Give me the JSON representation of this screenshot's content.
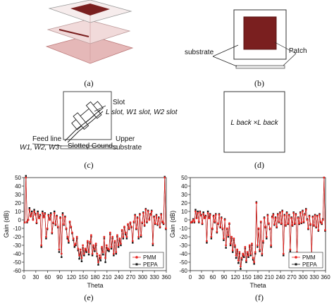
{
  "panels": {
    "a": {
      "caption": "(a)"
    },
    "b": {
      "caption": "(b)",
      "label_substrate": "substrate",
      "label_patch": "Patch"
    },
    "c": {
      "caption": "(c)",
      "label_slot": "Slot",
      "label_slot_dims": "L slot, W1 slot, W2 slot",
      "label_feed": "Feed line",
      "label_feed_dims": "W1, W2, W3",
      "label_slotted_ground": "Slotted Gound",
      "label_upper": "Upper",
      "label_substrate": "substrate"
    },
    "d": {
      "caption": "(d)",
      "label_back": "L back ×L back"
    },
    "e": {
      "caption": "(e)"
    },
    "f": {
      "caption": "(f)"
    }
  },
  "colors": {
    "patch": "#7a1f1f",
    "pmm": "#e8231f",
    "pepa": "#111111",
    "substrate_pink": "#e8c6c6"
  },
  "chart_data": [
    {
      "type": "line",
      "panel": "e",
      "xlabel": "Theta",
      "ylabel": "Gain (dB)",
      "xlim": [
        0,
        360
      ],
      "ylim": [
        -60,
        50
      ],
      "xticks": [
        0,
        30,
        60,
        90,
        120,
        150,
        180,
        210,
        240,
        270,
        300,
        330,
        360
      ],
      "yticks": [
        50,
        40,
        30,
        20,
        10,
        0,
        -10,
        -20,
        -30,
        -40,
        -50,
        -60
      ],
      "legend": [
        "PMM",
        "PEPA"
      ],
      "legend_position": "bottom-right",
      "x": [
        2,
        5,
        8,
        11,
        14,
        17,
        20,
        23,
        26,
        29,
        32,
        35,
        38,
        41,
        44,
        47,
        50,
        53,
        56,
        59,
        62,
        65,
        68,
        71,
        74,
        77,
        80,
        83,
        86,
        89,
        92,
        95,
        98,
        101,
        104,
        107,
        110,
        113,
        116,
        119,
        122,
        125,
        128,
        131,
        134,
        137,
        140,
        143,
        146,
        149,
        152,
        155,
        158,
        161,
        164,
        167,
        170,
        173,
        176,
        179,
        182,
        185,
        188,
        191,
        194,
        197,
        200,
        203,
        206,
        209,
        212,
        215,
        218,
        221,
        224,
        227,
        230,
        233,
        236,
        239,
        242,
        245,
        248,
        251,
        254,
        257,
        260,
        263,
        266,
        269,
        272,
        275,
        278,
        281,
        284,
        287,
        290,
        293,
        296,
        299,
        302,
        305,
        308,
        311,
        314,
        317,
        320,
        323,
        326,
        329,
        332,
        335,
        338,
        341,
        344,
        347,
        350,
        353,
        356,
        359
      ],
      "series": [
        {
          "name": "PMM",
          "values": [
            -3,
            50,
            -2,
            0,
            12,
            4,
            8,
            0,
            10,
            6,
            -3,
            8,
            2,
            5,
            -30,
            8,
            3,
            7,
            -20,
            -10,
            5,
            0,
            6,
            -15,
            -3,
            8,
            -5,
            4,
            -8,
            -35,
            2,
            -40,
            6,
            -5,
            3,
            -10,
            -20,
            -25,
            -2,
            -8,
            -15,
            -22,
            -30,
            -28,
            -20,
            -34,
            -42,
            -35,
            -45,
            -30,
            -40,
            -34,
            -36,
            -25,
            -38,
            -26,
            -18,
            -40,
            -30,
            -35,
            -28,
            -40,
            -50,
            -42,
            -45,
            -32,
            -38,
            -20,
            -45,
            -30,
            -34,
            -35,
            -15,
            -32,
            -20,
            -40,
            -25,
            -38,
            -18,
            -30,
            -22,
            -28,
            -12,
            -20,
            -8,
            -15,
            -20,
            -5,
            -10,
            -3,
            -8,
            -25,
            -2,
            5,
            -10,
            2,
            -20,
            6,
            -18,
            -3,
            8,
            -6,
            12,
            -2,
            10,
            0,
            6,
            10,
            -28,
            3,
            -4,
            5,
            -5,
            2,
            -8,
            6,
            -2,
            -4,
            50,
            -10
          ]
        },
        {
          "name": "PEPA",
          "values": [
            -3,
            52,
            -3,
            0,
            14,
            5,
            10,
            1,
            12,
            7,
            -4,
            10,
            3,
            6,
            -32,
            10,
            4,
            8,
            -22,
            -11,
            6,
            1,
            8,
            -16,
            -4,
            10,
            -6,
            5,
            -9,
            -38,
            3,
            -44,
            8,
            -6,
            4,
            -11,
            -22,
            -27,
            -3,
            -9,
            -16,
            -24,
            -32,
            -30,
            -22,
            -36,
            -46,
            -38,
            -49,
            -33,
            -42,
            -36,
            -38,
            -27,
            -41,
            -28,
            -20,
            -42,
            -32,
            -37,
            -30,
            -43,
            -53,
            -45,
            -48,
            -34,
            -41,
            -22,
            -50,
            -33,
            -36,
            -37,
            -17,
            -34,
            -22,
            -42,
            -27,
            -40,
            -20,
            -32,
            -24,
            -30,
            -13,
            -22,
            -9,
            -17,
            -22,
            -6,
            -11,
            -4,
            -9,
            -27,
            -3,
            6,
            -11,
            3,
            -22,
            7,
            -20,
            -4,
            9,
            -7,
            13,
            -3,
            11,
            1,
            7,
            11,
            -30,
            4,
            -5,
            6,
            -6,
            3,
            -9,
            7,
            -3,
            -5,
            51,
            -11
          ]
        }
      ]
    },
    {
      "type": "line",
      "panel": "f",
      "xlabel": "Theta",
      "ylabel": "Gain (dB)",
      "xlim": [
        0,
        360
      ],
      "ylim": [
        -60,
        50
      ],
      "xticks": [
        0,
        30,
        60,
        90,
        120,
        150,
        180,
        210,
        240,
        270,
        300,
        330,
        360
      ],
      "yticks": [
        50,
        40,
        30,
        20,
        10,
        0,
        -10,
        -20,
        -30,
        -40,
        -50,
        -60
      ],
      "legend": [
        "PMM",
        "PEPA"
      ],
      "legend_position": "bottom-right",
      "x": [
        2,
        5,
        8,
        11,
        14,
        17,
        20,
        23,
        26,
        29,
        32,
        35,
        38,
        41,
        44,
        47,
        50,
        53,
        56,
        59,
        62,
        65,
        68,
        71,
        74,
        77,
        80,
        83,
        86,
        89,
        92,
        95,
        98,
        101,
        104,
        107,
        110,
        113,
        116,
        119,
        122,
        125,
        128,
        131,
        134,
        137,
        140,
        143,
        146,
        149,
        152,
        155,
        158,
        161,
        164,
        167,
        170,
        173,
        176,
        179,
        182,
        185,
        188,
        191,
        194,
        197,
        200,
        203,
        206,
        209,
        212,
        215,
        218,
        221,
        224,
        227,
        230,
        233,
        236,
        239,
        242,
        245,
        248,
        251,
        254,
        257,
        260,
        263,
        266,
        269,
        272,
        275,
        278,
        281,
        284,
        287,
        290,
        293,
        296,
        299,
        302,
        305,
        308,
        311,
        314,
        317,
        320,
        323,
        326,
        329,
        332,
        335,
        338,
        341,
        344,
        347,
        350,
        353,
        356,
        359
      ],
      "series": [
        {
          "name": "PMM",
          "values": [
            -3,
            -2,
            0,
            -2,
            10,
            2,
            8,
            -2,
            9,
            5,
            -4,
            7,
            2,
            4,
            -25,
            8,
            2,
            6,
            -20,
            -10,
            4,
            -2,
            6,
            -14,
            -4,
            6,
            -8,
            2,
            -10,
            -22,
            0,
            -30,
            -10,
            -18,
            -4,
            -28,
            -20,
            -36,
            -22,
            -30,
            -42,
            -35,
            -48,
            -38,
            -55,
            -45,
            -40,
            -42,
            -32,
            -48,
            -38,
            -42,
            -30,
            -40,
            -28,
            -45,
            -50,
            -38,
            20,
            -30,
            -10,
            -35,
            -2,
            -40,
            -25,
            2,
            -8,
            -20,
            5,
            -4,
            -10,
            -30,
            3,
            6,
            -5,
            2,
            -8,
            6,
            -2,
            8,
            -4,
            10,
            -40,
            5,
            -6,
            8,
            -4,
            5,
            -35,
            2,
            -6,
            8,
            -4,
            6,
            -38,
            2,
            -4,
            8,
            -3,
            10,
            -2,
            6,
            12,
            0,
            -10,
            4,
            -5,
            -40,
            3,
            -6,
            5,
            -8,
            4,
            -12,
            6,
            -2,
            -4,
            0,
            50,
            -12
          ]
        },
        {
          "name": "PEPA",
          "values": [
            -3,
            -3,
            1,
            -3,
            12,
            3,
            10,
            -3,
            10,
            6,
            -5,
            9,
            3,
            5,
            -27,
            10,
            3,
            7,
            -22,
            -11,
            5,
            -3,
            7,
            -15,
            -5,
            7,
            -9,
            3,
            -11,
            -24,
            1,
            -33,
            -11,
            -20,
            -5,
            -30,
            -22,
            -38,
            -24,
            -32,
            -45,
            -37,
            -51,
            -40,
            -58,
            -47,
            -42,
            -44,
            -34,
            -50,
            -40,
            -44,
            -32,
            -42,
            -30,
            -47,
            -52,
            -40,
            21,
            -32,
            -11,
            -37,
            -3,
            -42,
            -27,
            3,
            -9,
            -22,
            6,
            -5,
            -11,
            -32,
            4,
            7,
            -6,
            3,
            -9,
            7,
            -3,
            9,
            -5,
            11,
            -42,
            6,
            -7,
            9,
            -5,
            6,
            -37,
            3,
            -7,
            9,
            -5,
            7,
            -40,
            3,
            -5,
            9,
            -4,
            11,
            -3,
            7,
            13,
            1,
            -11,
            5,
            -6,
            -42,
            4,
            -7,
            6,
            -9,
            5,
            -13,
            7,
            -3,
            -5,
            1,
            50,
            -13
          ]
        }
      ]
    }
  ]
}
